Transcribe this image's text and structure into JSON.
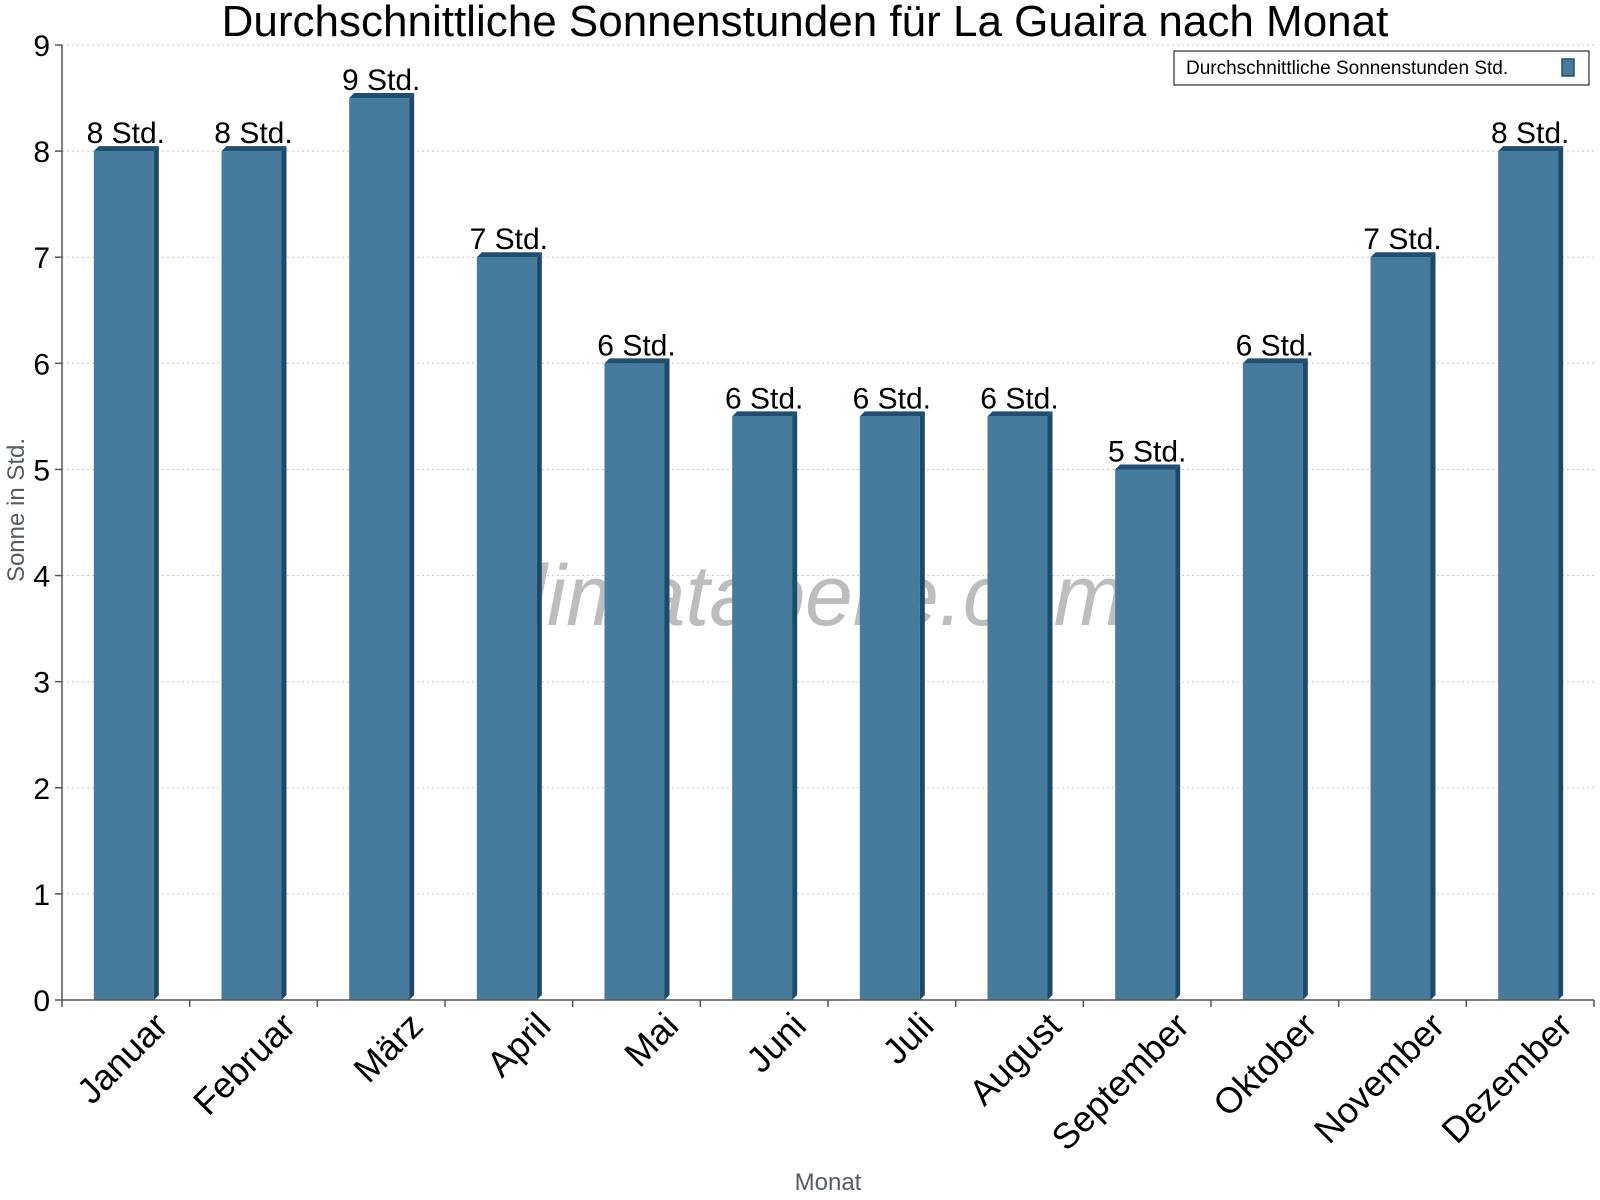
{
  "chart_data": {
    "type": "bar",
    "title": "Durchschnittliche Sonnenstunden für La Guaira nach Monat",
    "xlabel": "Monat",
    "ylabel": "Sonne in Std.",
    "ylim": [
      0,
      9
    ],
    "yticks": [
      "0",
      "1",
      "2",
      "3",
      "4",
      "5",
      "6",
      "7",
      "8",
      "9"
    ],
    "categories": [
      "Januar",
      "Februar",
      "März",
      "April",
      "Mai",
      "Juni",
      "Juli",
      "August",
      "September",
      "Oktober",
      "November",
      "Dezember"
    ],
    "series": [
      {
        "name": "Durchschnittliche Sonnenstunden Std.",
        "values": [
          8,
          8,
          8.5,
          7,
          6,
          5.5,
          5.5,
          5.5,
          5,
          6,
          7,
          8
        ],
        "data_labels": [
          "8 Std.",
          "8 Std.",
          "9 Std.",
          "7 Std.",
          "6 Std.",
          "6 Std.",
          "6 Std.",
          "6 Std.",
          "5 Std.",
          "6 Std.",
          "7 Std.",
          "8 Std."
        ],
        "color": "#467b9d",
        "top_color": "#1f4e6e",
        "side_color": "#1d4a68"
      }
    ],
    "grid": true,
    "legend_position": "top-right"
  },
  "watermark": "klimatabelle.com",
  "colors": {
    "axis_label": "#555b66",
    "watermark": "#bdbdbd"
  }
}
